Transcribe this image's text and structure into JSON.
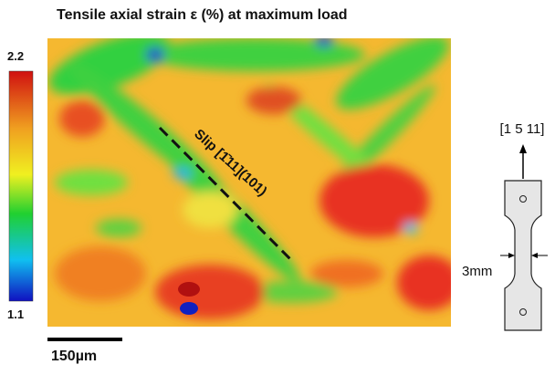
{
  "figure": {
    "title": "Tensile axial strain ε (%) at maximum load",
    "colorbar": {
      "max": 2.2,
      "min": 1.1
    },
    "annotation": "Slip [1̄11](101)",
    "scale_bar": "150µm",
    "specimen": {
      "direction": "[1 5 11]",
      "width": "3mm"
    }
  }
}
